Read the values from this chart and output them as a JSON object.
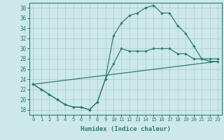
{
  "xlabel": "Humidex (Indice chaleur)",
  "bg_color": "#cde8e8",
  "grid_color": "#aacccc",
  "line_color": "#2e7d6e",
  "xlim": [
    -0.5,
    23.5
  ],
  "ylim": [
    17,
    39
  ],
  "yticks": [
    18,
    20,
    22,
    24,
    26,
    28,
    30,
    32,
    34,
    36,
    38
  ],
  "xticks": [
    0,
    1,
    2,
    3,
    4,
    5,
    6,
    7,
    8,
    9,
    10,
    11,
    12,
    13,
    14,
    15,
    16,
    17,
    18,
    19,
    20,
    21,
    22,
    23
  ],
  "line1_x": [
    0,
    1,
    2,
    3,
    4,
    5,
    6,
    7,
    8,
    9,
    10,
    11,
    12,
    13,
    14,
    15,
    16,
    17,
    18,
    19,
    20,
    21,
    22,
    23
  ],
  "line1_y": [
    23,
    22,
    21,
    20,
    19,
    18.5,
    18.5,
    18,
    19.5,
    24,
    27,
    30,
    29.5,
    29.5,
    29.5,
    30,
    30,
    30,
    29,
    29,
    28,
    28,
    28,
    28
  ],
  "line2_x": [
    0,
    1,
    2,
    3,
    4,
    5,
    6,
    7,
    8,
    9,
    10,
    11,
    12,
    13,
    14,
    15,
    16,
    17,
    18,
    19,
    20,
    21,
    22,
    23
  ],
  "line2_y": [
    23,
    22,
    21,
    20,
    19,
    18.5,
    18.5,
    18,
    19.5,
    24,
    32.5,
    35,
    36.5,
    37,
    38,
    38.5,
    37,
    37,
    34.5,
    33,
    30.5,
    28,
    27.5,
    27.5
  ],
  "line3_x": [
    0,
    23
  ],
  "line3_y": [
    23,
    27.5
  ]
}
